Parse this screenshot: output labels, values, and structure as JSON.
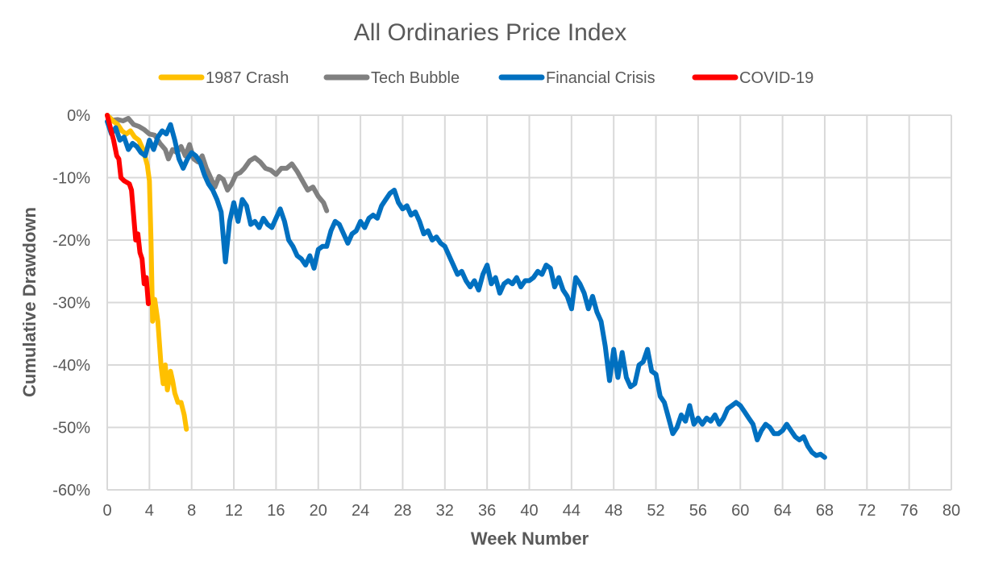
{
  "chart_data": {
    "type": "line",
    "title": "All Ordinaries Price Index",
    "xlabel": "Week Number",
    "ylabel": "Cumulative Drawdown",
    "xlim": [
      0,
      80
    ],
    "ylim": [
      -60,
      0
    ],
    "x_ticks": [
      0,
      4,
      8,
      12,
      16,
      20,
      24,
      28,
      32,
      36,
      40,
      44,
      48,
      52,
      56,
      60,
      64,
      68,
      72,
      76,
      80
    ],
    "x_tick_labels": [
      "0",
      "4",
      "8",
      "12",
      "16",
      "20",
      "24",
      "28",
      "32",
      "36",
      "40",
      "44",
      "48",
      "52",
      "56",
      "60",
      "64",
      "68",
      "72",
      "76",
      "80"
    ],
    "y_ticks": [
      0,
      -10,
      -20,
      -30,
      -40,
      -50,
      -60
    ],
    "y_tick_labels": [
      "0%",
      "-10%",
      "-20%",
      "-30%",
      "-40%",
      "-50%",
      "-60%"
    ],
    "grid": true,
    "legend_position": "top",
    "series": [
      {
        "name": "1987 Crash",
        "color": "#FFC000",
        "points": [
          [
            0,
            0
          ],
          [
            0.6,
            -1
          ],
          [
            1.0,
            -1.5
          ],
          [
            1.4,
            -2.5
          ],
          [
            1.8,
            -3
          ],
          [
            2.2,
            -2.5
          ],
          [
            2.6,
            -3.5
          ],
          [
            3.0,
            -4
          ],
          [
            3.4,
            -5.5
          ],
          [
            3.8,
            -8
          ],
          [
            4.0,
            -10.5
          ],
          [
            4.15,
            -20
          ],
          [
            4.3,
            -33
          ],
          [
            4.5,
            -29.5
          ],
          [
            4.8,
            -33
          ],
          [
            5.1,
            -40
          ],
          [
            5.3,
            -43
          ],
          [
            5.5,
            -40
          ],
          [
            5.7,
            -44
          ],
          [
            6.0,
            -41
          ],
          [
            6.2,
            -42.5
          ],
          [
            6.4,
            -44.5
          ],
          [
            6.7,
            -46
          ],
          [
            7.0,
            -46
          ],
          [
            7.3,
            -48
          ],
          [
            7.5,
            -50.3
          ]
        ]
      },
      {
        "name": "Tech Bubble",
        "color": "#808080",
        "points": [
          [
            0,
            0
          ],
          [
            0.5,
            -0.8
          ],
          [
            1.0,
            -0.7
          ],
          [
            1.5,
            -0.9
          ],
          [
            2.0,
            -0.5
          ],
          [
            2.5,
            -1.5
          ],
          [
            3.0,
            -1.8
          ],
          [
            3.5,
            -2.3
          ],
          [
            4.0,
            -3
          ],
          [
            4.5,
            -3.2
          ],
          [
            5.0,
            -4.5
          ],
          [
            5.5,
            -5.5
          ],
          [
            5.8,
            -7
          ],
          [
            6.2,
            -5.5
          ],
          [
            6.6,
            -6
          ],
          [
            7.0,
            -5
          ],
          [
            7.4,
            -6.5
          ],
          [
            7.8,
            -4.7
          ],
          [
            8.2,
            -7
          ],
          [
            8.6,
            -7.5
          ],
          [
            9.0,
            -6.5
          ],
          [
            9.4,
            -8.5
          ],
          [
            9.8,
            -10
          ],
          [
            10.2,
            -11.5
          ],
          [
            10.6,
            -9.8
          ],
          [
            11.0,
            -10.3
          ],
          [
            11.4,
            -12
          ],
          [
            11.8,
            -11
          ],
          [
            12.2,
            -9.5
          ],
          [
            12.6,
            -9.2
          ],
          [
            13.0,
            -8.5
          ],
          [
            13.5,
            -7.3
          ],
          [
            14.0,
            -6.8
          ],
          [
            14.5,
            -7.5
          ],
          [
            15.0,
            -8.5
          ],
          [
            15.5,
            -8.8
          ],
          [
            16.0,
            -9.5
          ],
          [
            16.5,
            -8.5
          ],
          [
            17.0,
            -8.5
          ],
          [
            17.5,
            -7.8
          ],
          [
            18.0,
            -9
          ],
          [
            18.5,
            -10.5
          ],
          [
            19.0,
            -12
          ],
          [
            19.5,
            -11.5
          ],
          [
            20.0,
            -13
          ],
          [
            20.5,
            -14
          ],
          [
            20.8,
            -15.3
          ]
        ]
      },
      {
        "name": "Financial Crisis",
        "color": "#0070C0",
        "points": [
          [
            0,
            -1
          ],
          [
            0.4,
            -3
          ],
          [
            0.8,
            -2
          ],
          [
            1.2,
            -4
          ],
          [
            1.6,
            -3.5
          ],
          [
            2.0,
            -5.5
          ],
          [
            2.4,
            -4.5
          ],
          [
            2.8,
            -5
          ],
          [
            3.2,
            -6
          ],
          [
            3.6,
            -6.5
          ],
          [
            4.0,
            -4
          ],
          [
            4.4,
            -5.5
          ],
          [
            4.8,
            -3.5
          ],
          [
            5.2,
            -2.5
          ],
          [
            5.6,
            -3
          ],
          [
            6.0,
            -1.5
          ],
          [
            6.4,
            -4
          ],
          [
            6.8,
            -7
          ],
          [
            7.2,
            -8.5
          ],
          [
            7.6,
            -7
          ],
          [
            8.0,
            -6
          ],
          [
            8.4,
            -6.5
          ],
          [
            8.8,
            -7.5
          ],
          [
            9.2,
            -9.5
          ],
          [
            9.6,
            -11
          ],
          [
            10.0,
            -12
          ],
          [
            10.4,
            -13.5
          ],
          [
            10.8,
            -15.5
          ],
          [
            11.2,
            -23.5
          ],
          [
            11.6,
            -17
          ],
          [
            12.0,
            -14
          ],
          [
            12.4,
            -17
          ],
          [
            12.8,
            -13.5
          ],
          [
            13.2,
            -14.5
          ],
          [
            13.6,
            -17.5
          ],
          [
            14.0,
            -17
          ],
          [
            14.4,
            -18
          ],
          [
            14.8,
            -16.5
          ],
          [
            15.2,
            -17.5
          ],
          [
            15.6,
            -18
          ],
          [
            16.0,
            -16.5
          ],
          [
            16.4,
            -15
          ],
          [
            16.8,
            -17
          ],
          [
            17.2,
            -20
          ],
          [
            17.6,
            -21
          ],
          [
            18.0,
            -22.5
          ],
          [
            18.4,
            -23
          ],
          [
            18.8,
            -24
          ],
          [
            19.2,
            -22.5
          ],
          [
            19.6,
            -24.5
          ],
          [
            20.0,
            -21.5
          ],
          [
            20.4,
            -21
          ],
          [
            20.8,
            -21
          ],
          [
            21.2,
            -18.5
          ],
          [
            21.6,
            -17
          ],
          [
            22.0,
            -17.5
          ],
          [
            22.4,
            -19
          ],
          [
            22.8,
            -20.5
          ],
          [
            23.2,
            -19
          ],
          [
            23.6,
            -18.5
          ],
          [
            24.0,
            -17
          ],
          [
            24.4,
            -18
          ],
          [
            24.8,
            -16.5
          ],
          [
            25.2,
            -16
          ],
          [
            25.6,
            -16.5
          ],
          [
            26.0,
            -14.5
          ],
          [
            26.4,
            -13.5
          ],
          [
            26.8,
            -12.5
          ],
          [
            27.2,
            -12
          ],
          [
            27.6,
            -14
          ],
          [
            28.0,
            -15
          ],
          [
            28.4,
            -14.5
          ],
          [
            28.8,
            -16
          ],
          [
            29.2,
            -15.5
          ],
          [
            29.6,
            -17
          ],
          [
            30.0,
            -19
          ],
          [
            30.4,
            -18.5
          ],
          [
            30.8,
            -20
          ],
          [
            31.2,
            -19.5
          ],
          [
            31.6,
            -20.5
          ],
          [
            32.0,
            -21
          ],
          [
            32.4,
            -22.5
          ],
          [
            32.8,
            -24
          ],
          [
            33.2,
            -25.5
          ],
          [
            33.6,
            -25
          ],
          [
            34.0,
            -26.5
          ],
          [
            34.4,
            -27.5
          ],
          [
            34.8,
            -26.5
          ],
          [
            35.2,
            -28
          ],
          [
            35.6,
            -25.5
          ],
          [
            36.0,
            -24
          ],
          [
            36.4,
            -27
          ],
          [
            36.8,
            -26
          ],
          [
            37.2,
            -28.5
          ],
          [
            37.6,
            -27
          ],
          [
            38.0,
            -26.5
          ],
          [
            38.4,
            -27
          ],
          [
            38.8,
            -26
          ],
          [
            39.2,
            -27.5
          ],
          [
            39.6,
            -26.5
          ],
          [
            40.0,
            -26.5
          ],
          [
            40.4,
            -26
          ],
          [
            40.8,
            -25
          ],
          [
            41.2,
            -25.5
          ],
          [
            41.6,
            -24
          ],
          [
            42.0,
            -24.5
          ],
          [
            42.4,
            -27.5
          ],
          [
            42.8,
            -26
          ],
          [
            43.2,
            -28
          ],
          [
            43.6,
            -29
          ],
          [
            44.0,
            -31
          ],
          [
            44.4,
            -26
          ],
          [
            44.8,
            -27
          ],
          [
            45.2,
            -28.5
          ],
          [
            45.6,
            -31
          ],
          [
            46.0,
            -29
          ],
          [
            46.4,
            -31.5
          ],
          [
            46.8,
            -33
          ],
          [
            47.2,
            -37
          ],
          [
            47.6,
            -42.5
          ],
          [
            48.0,
            -37.5
          ],
          [
            48.4,
            -42
          ],
          [
            48.8,
            -38
          ],
          [
            49.2,
            -42
          ],
          [
            49.6,
            -43.5
          ],
          [
            50.0,
            -43
          ],
          [
            50.4,
            -40
          ],
          [
            50.8,
            -39.5
          ],
          [
            51.2,
            -37.5
          ],
          [
            51.6,
            -41
          ],
          [
            52.0,
            -41.5
          ],
          [
            52.4,
            -45
          ],
          [
            52.8,
            -46
          ],
          [
            53.2,
            -48.5
          ],
          [
            53.6,
            -51
          ],
          [
            54.0,
            -50
          ],
          [
            54.4,
            -48
          ],
          [
            54.8,
            -49
          ],
          [
            55.2,
            -46.5
          ],
          [
            55.6,
            -49.5
          ],
          [
            56.0,
            -48.5
          ],
          [
            56.4,
            -49.5
          ],
          [
            56.8,
            -48.5
          ],
          [
            57.2,
            -49
          ],
          [
            57.6,
            -48
          ],
          [
            58.0,
            -49.5
          ],
          [
            58.4,
            -48.5
          ],
          [
            58.8,
            -47
          ],
          [
            59.2,
            -46.5
          ],
          [
            59.6,
            -46
          ],
          [
            60.0,
            -46.5
          ],
          [
            60.4,
            -47.5
          ],
          [
            60.8,
            -48.5
          ],
          [
            61.2,
            -49.5
          ],
          [
            61.6,
            -52
          ],
          [
            62.0,
            -50.5
          ],
          [
            62.4,
            -49.5
          ],
          [
            62.8,
            -50
          ],
          [
            63.2,
            -51
          ],
          [
            63.6,
            -51
          ],
          [
            64.0,
            -50.5
          ],
          [
            64.4,
            -49.5
          ],
          [
            64.8,
            -50.5
          ],
          [
            65.2,
            -51.5
          ],
          [
            65.6,
            -52
          ],
          [
            66.0,
            -51.5
          ],
          [
            66.4,
            -53
          ],
          [
            66.8,
            -54
          ],
          [
            67.2,
            -54.5
          ],
          [
            67.6,
            -54.3
          ],
          [
            68.0,
            -54.8
          ]
        ]
      },
      {
        "name": "COVID-19",
        "color": "#FF0000",
        "points": [
          [
            0,
            0
          ],
          [
            0.3,
            -2
          ],
          [
            0.6,
            -4
          ],
          [
            0.9,
            -6.5
          ],
          [
            1.1,
            -7
          ],
          [
            1.3,
            -10
          ],
          [
            1.6,
            -10.5
          ],
          [
            1.9,
            -10.8
          ],
          [
            2.1,
            -11
          ],
          [
            2.3,
            -12
          ],
          [
            2.5,
            -16
          ],
          [
            2.7,
            -20
          ],
          [
            2.9,
            -19
          ],
          [
            3.1,
            -22
          ],
          [
            3.3,
            -23
          ],
          [
            3.5,
            -27
          ],
          [
            3.7,
            -26
          ],
          [
            3.9,
            -30.2
          ]
        ]
      }
    ]
  }
}
